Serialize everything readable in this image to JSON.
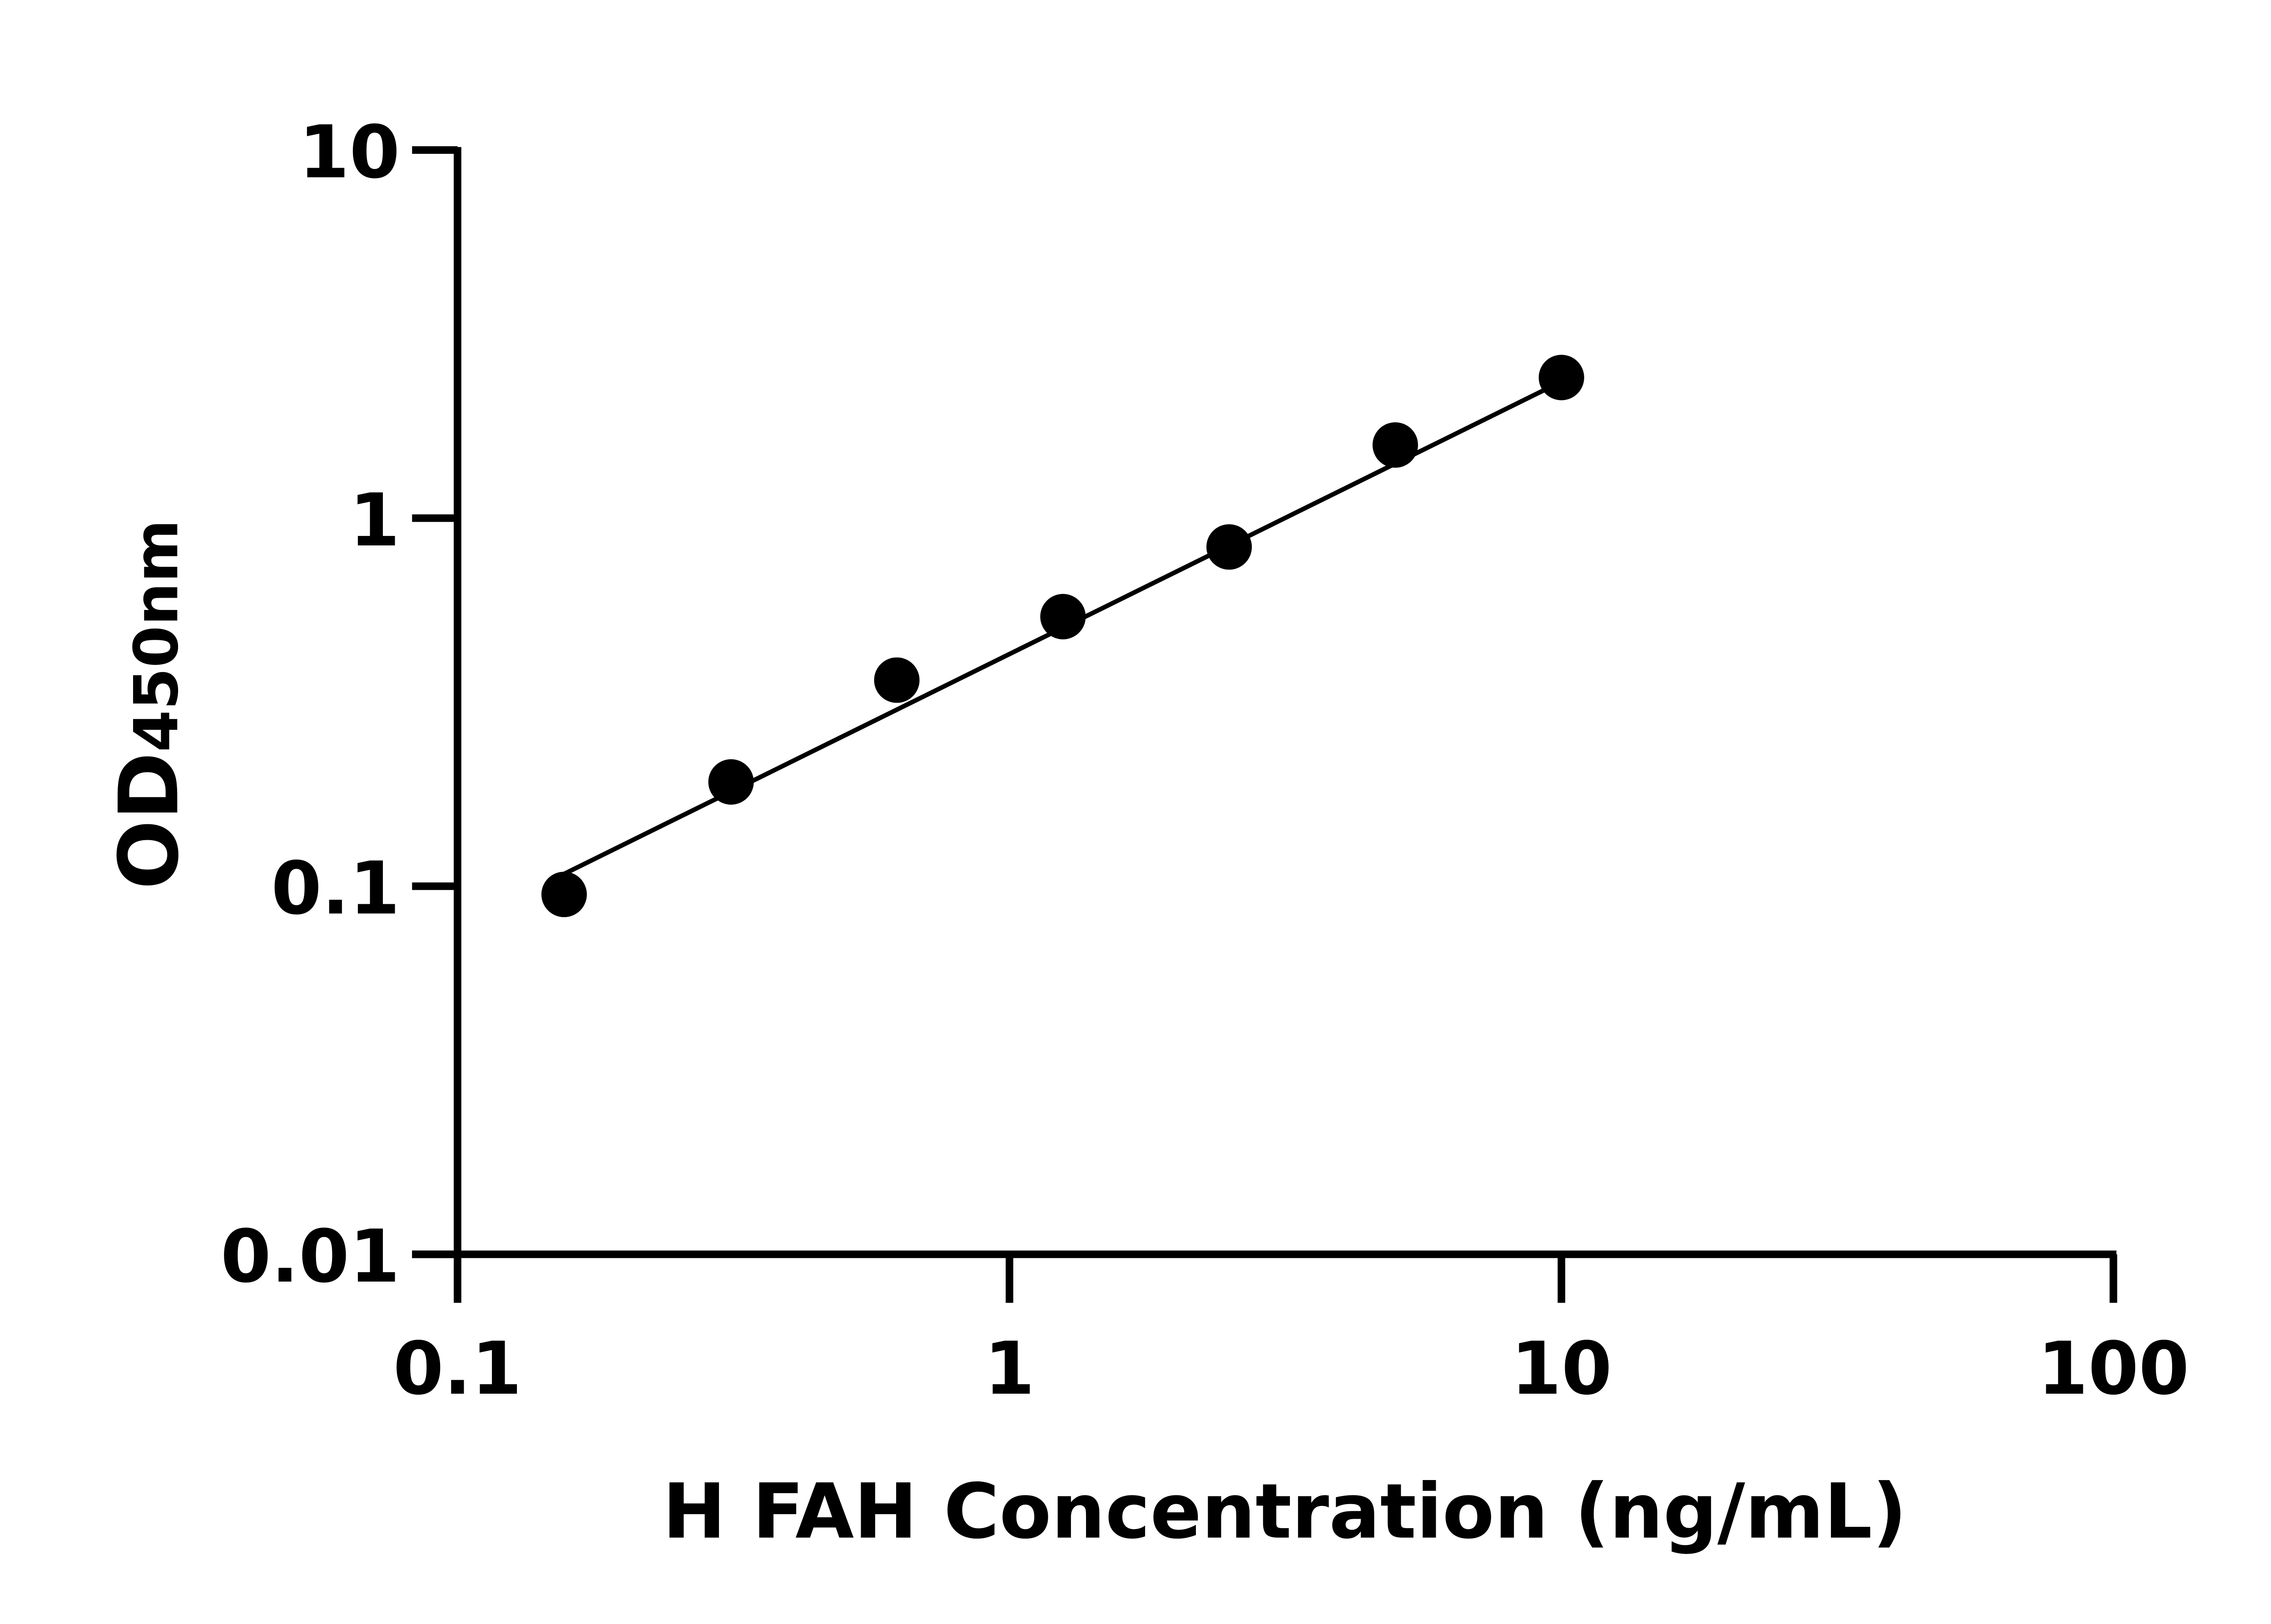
{
  "chart_data": {
    "type": "scatter",
    "title": "",
    "xlabel": "H FAH Concentration (ng/mL)",
    "ylabel_main": "OD",
    "ylabel_sub": "450nm",
    "x_scale": "log",
    "y_scale": "log",
    "xlim": [
      0.1,
      100
    ],
    "ylim": [
      0.01,
      10
    ],
    "x_ticks": [
      "0.1",
      "1",
      "10",
      "100"
    ],
    "y_ticks": [
      "0.01",
      "0.1",
      "1",
      "10"
    ],
    "grid": false,
    "legend": "none",
    "marker_color": "#000000",
    "points": {
      "x": [
        0.156,
        0.313,
        0.625,
        1.25,
        2.5,
        5,
        10
      ],
      "y": [
        0.095,
        0.192,
        0.363,
        0.54,
        0.835,
        1.58,
        2.41
      ]
    },
    "fit_line": {
      "x": [
        0.156,
        10
      ],
      "y": [
        0.108,
        2.35
      ]
    }
  }
}
